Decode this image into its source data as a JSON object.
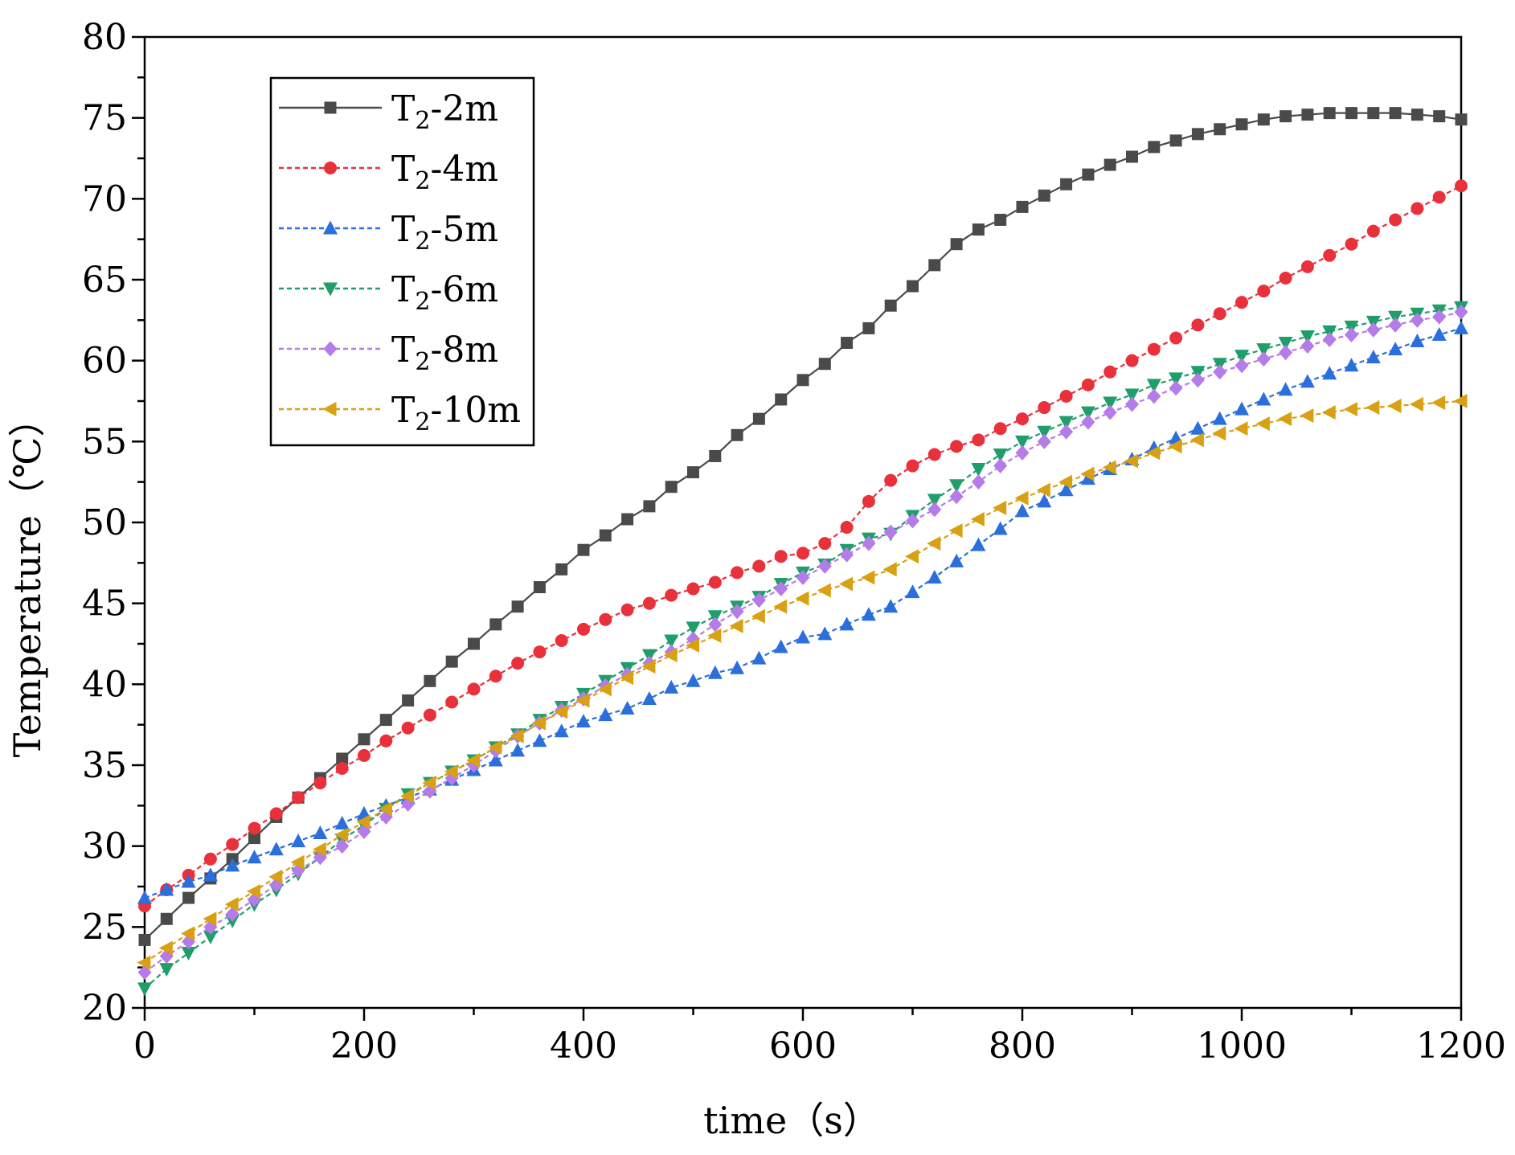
{
  "chart_data": {
    "type": "line",
    "title": "",
    "xlabel": "time（s）",
    "ylabel": "Temperature（℃）",
    "xlim": [
      0,
      1200
    ],
    "ylim": [
      20,
      80
    ],
    "xticks": [
      0,
      200,
      400,
      600,
      800,
      1000,
      1200
    ],
    "xtick_labels": [
      "0",
      "200",
      "400",
      "600",
      "800",
      "1000",
      "1200"
    ],
    "yticks": [
      20,
      25,
      30,
      35,
      40,
      45,
      50,
      55,
      60,
      65,
      70,
      75,
      80
    ],
    "ytick_labels": [
      "20",
      "25",
      "30",
      "35",
      "40",
      "45",
      "50",
      "55",
      "60",
      "65",
      "70",
      "75",
      "80"
    ],
    "grid": false,
    "legend_position": "top-left",
    "x": [
      0,
      20,
      40,
      60,
      80,
      100,
      120,
      140,
      160,
      180,
      200,
      220,
      240,
      260,
      280,
      300,
      320,
      340,
      360,
      380,
      400,
      420,
      440,
      460,
      480,
      500,
      520,
      540,
      560,
      580,
      600,
      620,
      640,
      660,
      680,
      700,
      720,
      740,
      760,
      780,
      800,
      820,
      840,
      860,
      880,
      900,
      920,
      940,
      960,
      980,
      1000,
      1020,
      1040,
      1060,
      1080,
      1100,
      1120,
      1140,
      1160,
      1180,
      1200
    ],
    "series": [
      {
        "name": "T2-2m",
        "label_main": "T",
        "label_sub": "2",
        "label_rest": "-2m",
        "color": "#4a4a4a",
        "marker": "square",
        "line_style": "solid",
        "values": [
          24.2,
          25.5,
          26.8,
          28.0,
          29.2,
          30.5,
          31.8,
          33.0,
          34.2,
          35.4,
          36.6,
          37.8,
          39.0,
          40.2,
          41.4,
          42.5,
          43.7,
          44.8,
          46.0,
          47.1,
          48.3,
          49.2,
          50.2,
          51.0,
          52.2,
          53.1,
          54.1,
          55.4,
          56.4,
          57.6,
          58.8,
          59.8,
          61.1,
          62.0,
          63.4,
          64.6,
          65.9,
          67.2,
          68.1,
          68.7,
          69.5,
          70.2,
          70.9,
          71.5,
          72.1,
          72.6,
          73.2,
          73.6,
          74.0,
          74.3,
          74.6,
          74.9,
          75.1,
          75.2,
          75.3,
          75.3,
          75.3,
          75.3,
          75.2,
          75.1,
          74.9
        ]
      },
      {
        "name": "T2-4m",
        "label_main": "T",
        "label_sub": "2",
        "label_rest": "-4m",
        "color": "#e8313b",
        "marker": "circle",
        "line_style": "dashed",
        "values": [
          26.3,
          27.3,
          28.2,
          29.2,
          30.1,
          31.1,
          32.0,
          33.0,
          33.9,
          34.8,
          35.6,
          36.5,
          37.3,
          38.1,
          38.9,
          39.7,
          40.5,
          41.3,
          42.0,
          42.7,
          43.4,
          44.0,
          44.6,
          45.0,
          45.5,
          45.9,
          46.3,
          46.9,
          47.3,
          47.9,
          48.1,
          48.7,
          49.7,
          51.3,
          52.6,
          53.5,
          54.2,
          54.7,
          55.1,
          55.8,
          56.4,
          57.1,
          57.8,
          58.5,
          59.3,
          60.0,
          60.7,
          61.4,
          62.2,
          62.9,
          63.6,
          64.3,
          65.1,
          65.8,
          66.5,
          67.2,
          68.0,
          68.7,
          69.4,
          70.1,
          70.8
        ]
      },
      {
        "name": "T2-5m",
        "label_main": "T",
        "label_sub": "2",
        "label_rest": "-5m",
        "color": "#2a6fdb",
        "marker": "triangle-up",
        "line_style": "dashed",
        "values": [
          26.8,
          27.3,
          27.8,
          28.2,
          28.8,
          29.3,
          29.8,
          30.3,
          30.8,
          31.4,
          32.0,
          32.5,
          33.0,
          33.5,
          34.1,
          34.7,
          35.3,
          35.9,
          36.5,
          37.1,
          37.7,
          38.1,
          38.5,
          39.1,
          39.8,
          40.2,
          40.7,
          41.0,
          41.6,
          42.3,
          42.9,
          43.1,
          43.7,
          44.3,
          44.8,
          45.7,
          46.6,
          47.6,
          48.6,
          49.6,
          50.7,
          51.3,
          52.0,
          52.7,
          53.3,
          53.9,
          54.6,
          55.2,
          55.8,
          56.4,
          57.0,
          57.6,
          58.2,
          58.7,
          59.2,
          59.7,
          60.2,
          60.7,
          61.2,
          61.6,
          62.0
        ]
      },
      {
        "name": "T2-6m",
        "label_main": "T",
        "label_sub": "2",
        "label_rest": "-6m",
        "color": "#1f9e6a",
        "marker": "triangle-down",
        "line_style": "dashed",
        "values": [
          21.2,
          22.4,
          23.4,
          24.4,
          25.4,
          26.4,
          27.3,
          28.3,
          29.3,
          30.4,
          31.3,
          32.3,
          33.2,
          33.9,
          34.6,
          35.3,
          36.1,
          36.9,
          37.8,
          38.6,
          39.4,
          40.2,
          41.0,
          41.8,
          42.7,
          43.5,
          44.2,
          44.8,
          45.4,
          46.2,
          46.9,
          47.4,
          48.3,
          49.0,
          49.3,
          50.4,
          51.4,
          52.3,
          53.3,
          54.2,
          55.0,
          55.6,
          56.2,
          56.8,
          57.4,
          57.9,
          58.5,
          58.9,
          59.3,
          59.8,
          60.3,
          60.7,
          61.1,
          61.5,
          61.8,
          62.1,
          62.4,
          62.7,
          62.9,
          63.1,
          63.3
        ]
      },
      {
        "name": "T2-8m",
        "label_main": "T",
        "label_sub": "2",
        "label_rest": "-8m",
        "color": "#b57be8",
        "marker": "diamond",
        "line_style": "dashed",
        "values": [
          22.2,
          23.2,
          24.1,
          25.0,
          25.8,
          26.7,
          27.6,
          28.5,
          29.3,
          30.0,
          30.9,
          31.8,
          32.6,
          33.4,
          34.2,
          35.0,
          35.9,
          36.8,
          37.6,
          38.4,
          39.1,
          39.9,
          40.6,
          41.3,
          42.0,
          42.8,
          43.7,
          44.5,
          45.2,
          45.9,
          46.6,
          47.3,
          48.0,
          48.7,
          49.4,
          50.1,
          50.8,
          51.6,
          52.5,
          53.5,
          54.3,
          55.0,
          55.6,
          56.2,
          56.8,
          57.3,
          57.8,
          58.3,
          58.8,
          59.3,
          59.7,
          60.1,
          60.5,
          60.9,
          61.3,
          61.6,
          61.9,
          62.2,
          62.5,
          62.7,
          63.0
        ]
      },
      {
        "name": "T2-10m",
        "label_main": "T",
        "label_sub": "2",
        "label_rest": "-10m",
        "color": "#d8a012",
        "marker": "triangle-left",
        "line_style": "dashed",
        "values": [
          22.8,
          23.7,
          24.6,
          25.5,
          26.4,
          27.2,
          28.1,
          29.0,
          29.8,
          30.7,
          31.5,
          32.3,
          33.1,
          33.9,
          34.6,
          35.3,
          36.1,
          36.8,
          37.6,
          38.3,
          39.0,
          39.7,
          40.4,
          41.1,
          41.8,
          42.4,
          43.0,
          43.6,
          44.2,
          44.8,
          45.3,
          45.8,
          46.2,
          46.6,
          47.1,
          47.9,
          48.7,
          49.5,
          50.2,
          50.9,
          51.5,
          52.0,
          52.5,
          53.0,
          53.4,
          53.8,
          54.3,
          54.7,
          55.1,
          55.5,
          55.8,
          56.1,
          56.4,
          56.6,
          56.8,
          57.0,
          57.1,
          57.2,
          57.3,
          57.4,
          57.5
        ]
      }
    ]
  }
}
